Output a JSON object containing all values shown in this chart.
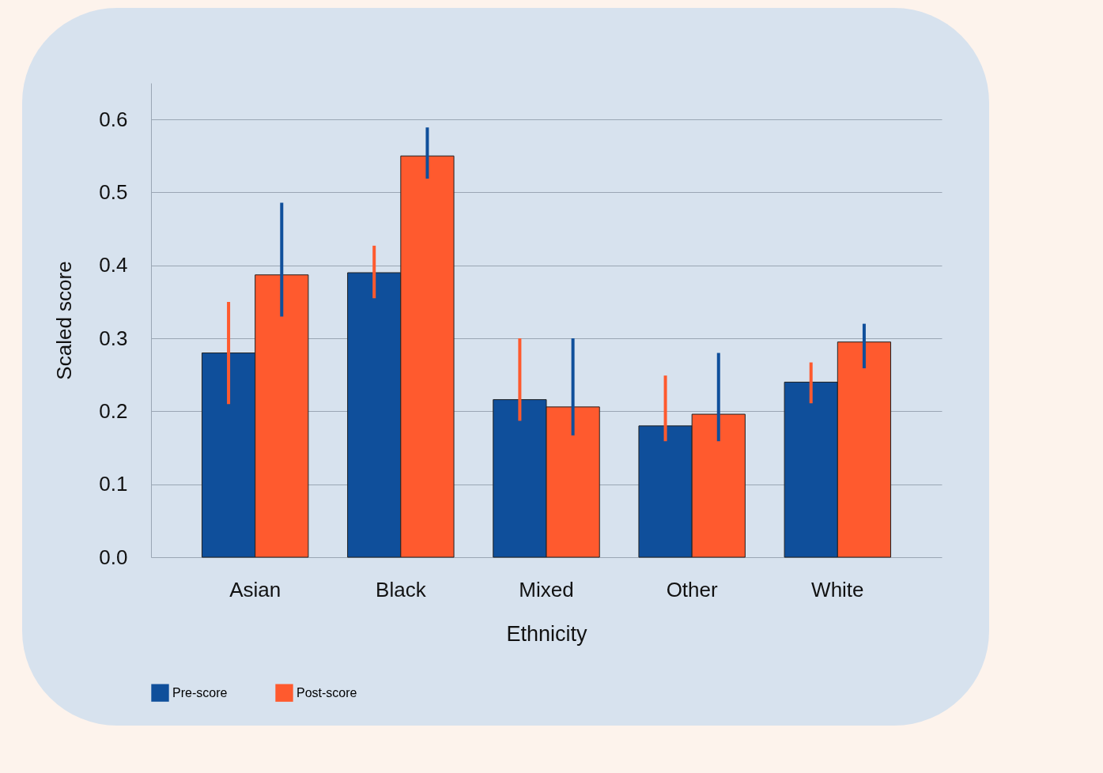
{
  "chart_data": {
    "type": "bar",
    "xlabel": "Ethnicity",
    "ylabel": "Scaled score",
    "categories": [
      "Asian",
      "Black",
      "Mixed",
      "Other",
      "White"
    ],
    "series": [
      {
        "name": "Pre-score",
        "color": "#0f4f9b",
        "values": [
          0.28,
          0.39,
          0.216,
          0.18,
          0.24
        ],
        "errors": [
          [
            0.21,
            0.35
          ],
          [
            0.355,
            0.427
          ],
          [
            0.187,
            0.3
          ],
          [
            0.159,
            0.249
          ],
          [
            0.211,
            0.267
          ]
        ]
      },
      {
        "name": "Post-score",
        "color": "#ff5a2e",
        "values": [
          0.387,
          0.55,
          0.206,
          0.196,
          0.295
        ],
        "errors": [
          [
            0.33,
            0.486
          ],
          [
            0.519,
            0.589
          ],
          [
            0.167,
            0.3
          ],
          [
            0.159,
            0.28
          ],
          [
            0.259,
            0.32
          ]
        ]
      }
    ],
    "ylim": [
      0,
      0.65
    ],
    "yticks": [
      {
        "value": 0,
        "label": "0.0"
      },
      0.1,
      0.2,
      0.3,
      0.4,
      0.5,
      0.6
    ],
    "grid": "y",
    "legend": "bottom"
  }
}
